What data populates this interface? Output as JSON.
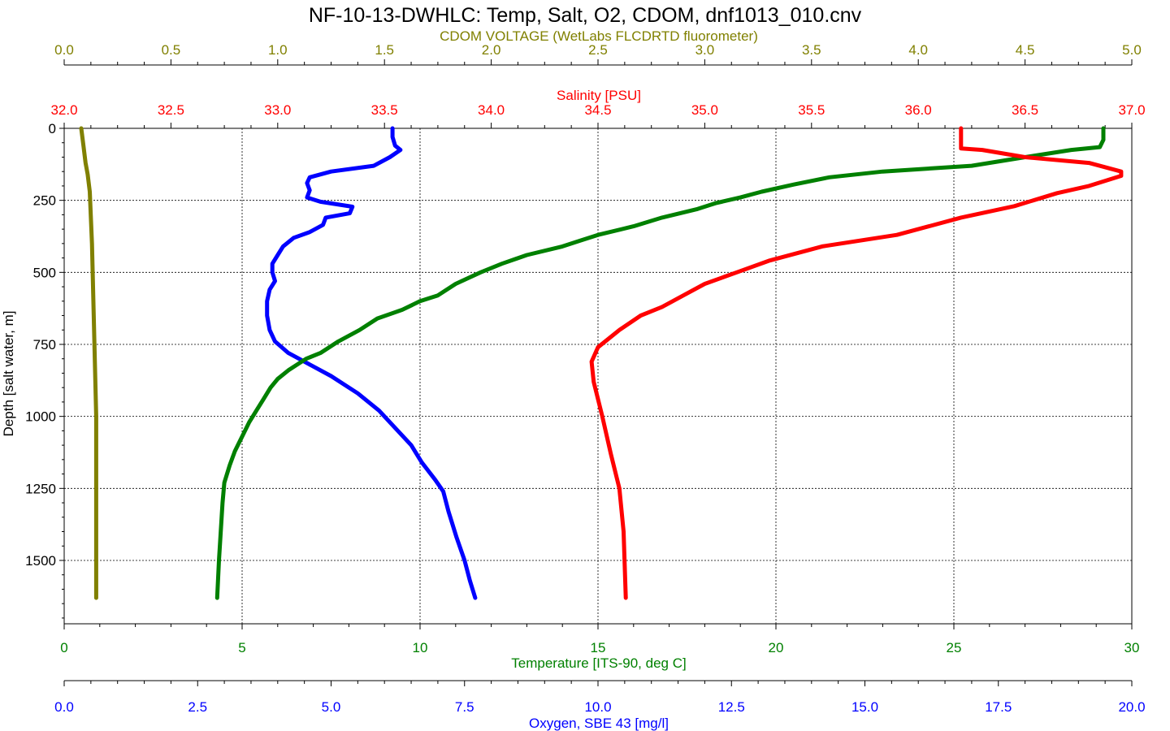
{
  "chart_data": {
    "type": "line",
    "title": "NF-10-13-DWHLC: Temp, Salt, O2, CDOM, dnf1013_010.cnv",
    "y_axis": {
      "label": "Depth [salt water, m]",
      "range": [
        0,
        1720
      ],
      "ticks": [
        "0",
        "250",
        "500",
        "750",
        "1000",
        "1250",
        "1500"
      ],
      "tick_values": [
        0,
        250,
        500,
        750,
        1000,
        1250,
        1500
      ]
    },
    "x_axes": {
      "cdom": {
        "label": "CDOM VOLTAGE (WetLabs FLCDRTD fluorometer)",
        "position": "top",
        "color": "#808000",
        "range": [
          0,
          5
        ],
        "ticks": [
          "0.0",
          "0.5",
          "1.0",
          "1.5",
          "2.0",
          "2.5",
          "3.0",
          "3.5",
          "4.0",
          "4.5",
          "5.0"
        ]
      },
      "salinity": {
        "label": "Salinity [PSU]",
        "position": "top",
        "color": "#ff0000",
        "range": [
          32,
          37
        ],
        "ticks": [
          "32.0",
          "32.5",
          "33.0",
          "33.5",
          "34.0",
          "34.5",
          "35.0",
          "35.5",
          "36.0",
          "36.5",
          "37.0"
        ]
      },
      "temperature": {
        "label": "Temperature [ITS-90, deg C]",
        "position": "bottom",
        "color": "#008000",
        "range": [
          0,
          30
        ],
        "ticks": [
          "0",
          "5",
          "10",
          "15",
          "20",
          "25",
          "30"
        ]
      },
      "oxygen": {
        "label": "Oxygen, SBE 43 [mg/l]",
        "position": "bottom",
        "color": "#0000ff",
        "range": [
          0,
          20
        ],
        "ticks": [
          "0.0",
          "2.5",
          "5.0",
          "7.5",
          "10.0",
          "12.5",
          "15.0",
          "17.5",
          "20.0"
        ]
      }
    },
    "grid": "dotted",
    "series": [
      {
        "axis": "cdom",
        "color": "#808000",
        "points": [
          [
            0.08,
            0
          ],
          [
            0.09,
            60
          ],
          [
            0.1,
            120
          ],
          [
            0.11,
            160
          ],
          [
            0.12,
            220
          ],
          [
            0.13,
            400
          ],
          [
            0.14,
            700
          ],
          [
            0.15,
            1000
          ],
          [
            0.15,
            1300
          ],
          [
            0.15,
            1630
          ]
        ]
      },
      {
        "axis": "oxygen",
        "color": "#0000ff",
        "points": [
          [
            6.15,
            0
          ],
          [
            6.15,
            30
          ],
          [
            6.2,
            60
          ],
          [
            6.3,
            75
          ],
          [
            6.1,
            100
          ],
          [
            5.8,
            130
          ],
          [
            5.0,
            150
          ],
          [
            4.6,
            170
          ],
          [
            4.55,
            190
          ],
          [
            4.6,
            215
          ],
          [
            4.55,
            240
          ],
          [
            4.8,
            255
          ],
          [
            5.4,
            272
          ],
          [
            5.35,
            295
          ],
          [
            4.9,
            310
          ],
          [
            4.85,
            335
          ],
          [
            4.6,
            360
          ],
          [
            4.3,
            380
          ],
          [
            4.1,
            410
          ],
          [
            4.0,
            440
          ],
          [
            3.9,
            470
          ],
          [
            3.9,
            500
          ],
          [
            3.95,
            530
          ],
          [
            3.85,
            560
          ],
          [
            3.8,
            600
          ],
          [
            3.8,
            650
          ],
          [
            3.85,
            700
          ],
          [
            3.95,
            740
          ],
          [
            4.2,
            780
          ],
          [
            4.6,
            820
          ],
          [
            5.0,
            860
          ],
          [
            5.5,
            920
          ],
          [
            5.9,
            980
          ],
          [
            6.2,
            1040
          ],
          [
            6.5,
            1100
          ],
          [
            6.7,
            1160
          ],
          [
            6.95,
            1220
          ],
          [
            7.1,
            1260
          ],
          [
            7.2,
            1330
          ],
          [
            7.35,
            1420
          ],
          [
            7.5,
            1500
          ],
          [
            7.6,
            1570
          ],
          [
            7.7,
            1630
          ]
        ]
      },
      {
        "axis": "temperature",
        "color": "#008000",
        "points": [
          [
            29.2,
            0
          ],
          [
            29.2,
            40
          ],
          [
            29.1,
            65
          ],
          [
            28.3,
            75
          ],
          [
            27.0,
            100
          ],
          [
            25.5,
            130
          ],
          [
            23.0,
            150
          ],
          [
            21.5,
            170
          ],
          [
            20.5,
            195
          ],
          [
            19.6,
            220
          ],
          [
            19.0,
            240
          ],
          [
            18.3,
            260
          ],
          [
            17.8,
            280
          ],
          [
            16.8,
            310
          ],
          [
            16.0,
            340
          ],
          [
            15.0,
            370
          ],
          [
            14.5,
            390
          ],
          [
            14.0,
            410
          ],
          [
            13.0,
            440
          ],
          [
            12.3,
            470
          ],
          [
            11.7,
            500
          ],
          [
            11.0,
            540
          ],
          [
            10.5,
            580
          ],
          [
            10.0,
            600
          ],
          [
            9.5,
            630
          ],
          [
            8.8,
            660
          ],
          [
            8.3,
            700
          ],
          [
            7.7,
            740
          ],
          [
            7.2,
            780
          ],
          [
            6.8,
            800
          ],
          [
            6.3,
            840
          ],
          [
            6.0,
            870
          ],
          [
            5.8,
            900
          ],
          [
            5.6,
            940
          ],
          [
            5.4,
            980
          ],
          [
            5.2,
            1020
          ],
          [
            5.0,
            1070
          ],
          [
            4.8,
            1120
          ],
          [
            4.65,
            1170
          ],
          [
            4.5,
            1230
          ],
          [
            4.45,
            1300
          ],
          [
            4.4,
            1400
          ],
          [
            4.35,
            1500
          ],
          [
            4.3,
            1630
          ]
        ]
      },
      {
        "axis": "salinity",
        "color": "#ff0000",
        "points": [
          [
            36.2,
            0
          ],
          [
            36.2,
            70
          ],
          [
            36.3,
            75
          ],
          [
            36.5,
            100
          ],
          [
            36.8,
            120
          ],
          [
            36.95,
            150
          ],
          [
            36.95,
            165
          ],
          [
            36.8,
            200
          ],
          [
            36.65,
            225
          ],
          [
            36.45,
            270
          ],
          [
            36.2,
            310
          ],
          [
            36.05,
            340
          ],
          [
            35.9,
            370
          ],
          [
            35.55,
            410
          ],
          [
            35.3,
            460
          ],
          [
            35.15,
            500
          ],
          [
            35.0,
            540
          ],
          [
            34.9,
            580
          ],
          [
            34.8,
            620
          ],
          [
            34.7,
            650
          ],
          [
            34.6,
            700
          ],
          [
            34.5,
            760
          ],
          [
            34.47,
            810
          ],
          [
            34.48,
            880
          ],
          [
            34.52,
            1000
          ],
          [
            34.56,
            1130
          ],
          [
            34.6,
            1250
          ],
          [
            34.62,
            1400
          ],
          [
            34.63,
            1630
          ]
        ]
      }
    ]
  }
}
